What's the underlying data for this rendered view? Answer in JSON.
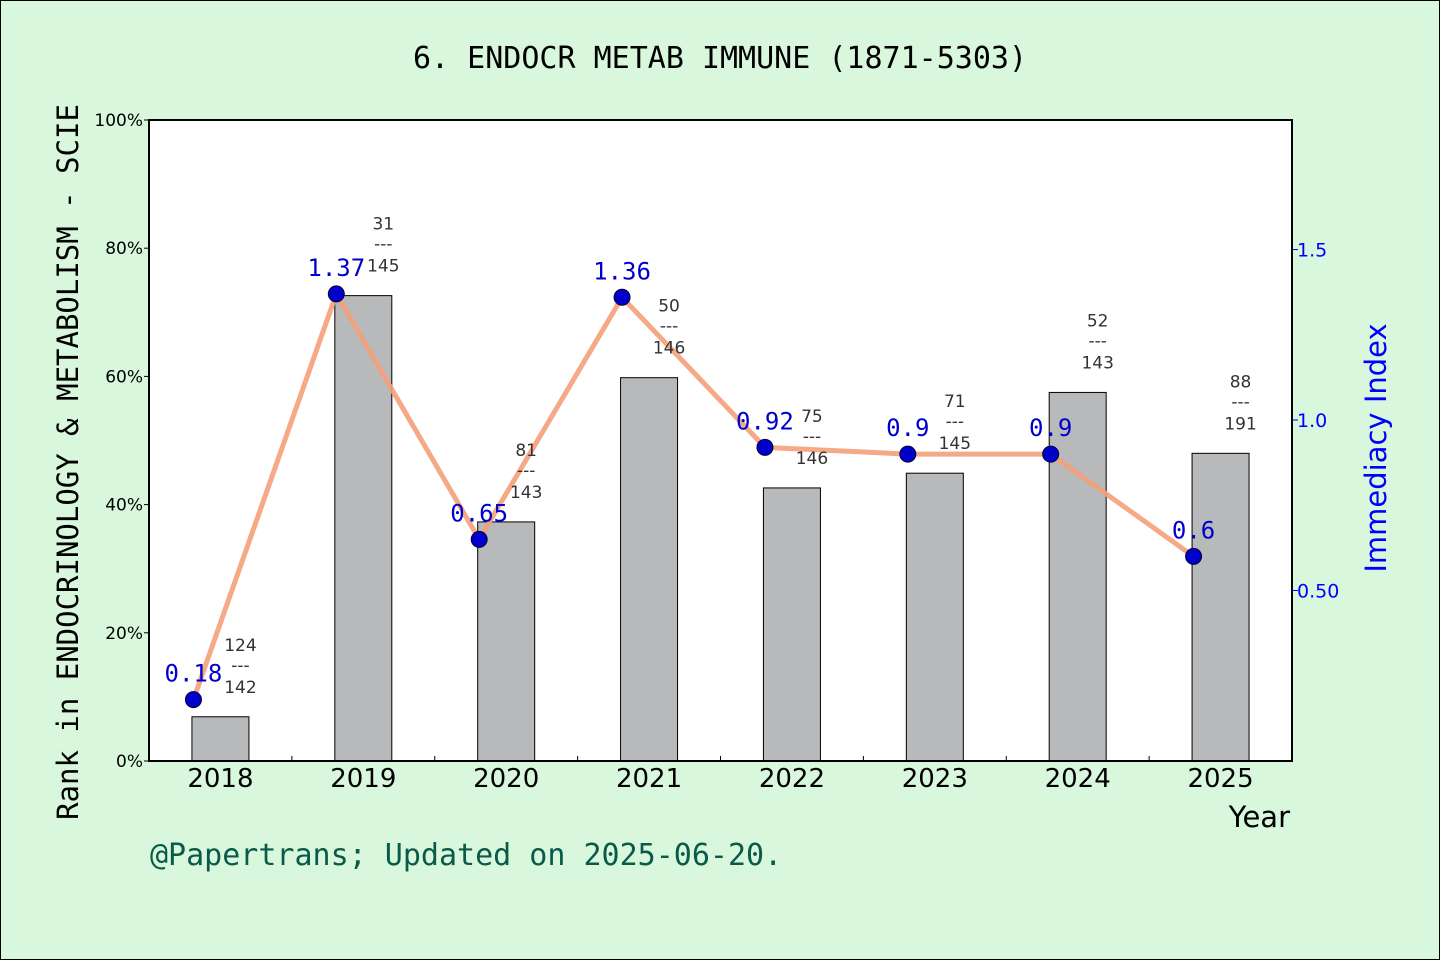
{
  "chart_data": {
    "type": "bar",
    "title": "6. ENDOCR METAB IMMUNE (1871-5303)",
    "xlabel": "Year",
    "ylabel_left": "Rank in ENDOCRINOLOGY & METABOLISM - SCIE",
    "ylabel_right": "Immediacy Index",
    "footnote": "@Papertrans; Updated on 2025-06-20.",
    "categories": [
      "2018",
      "2019",
      "2020",
      "2021",
      "2022",
      "2023",
      "2024",
      "2025"
    ],
    "left_axis": {
      "ylim": [
        0,
        100
      ],
      "ticks": [
        0,
        20,
        40,
        60,
        80,
        100
      ],
      "tick_labels": [
        "0%",
        "20%",
        "40%",
        "60%",
        "80%",
        "100%"
      ]
    },
    "right_axis": {
      "ylim": [
        0,
        1.88
      ],
      "ticks": [
        0.5,
        1.0,
        1.5
      ],
      "tick_labels": [
        "0.50",
        "1.0",
        "1.5"
      ]
    },
    "series": [
      {
        "kind": "bar",
        "color": "#b8b9ba",
        "values": [
          6.9,
          72.6,
          37.3,
          59.8,
          42.6,
          44.9,
          57.5,
          48.0
        ],
        "rank_numerators": [
          "124",
          "31",
          "81",
          "50",
          "75",
          "71",
          "52",
          "88"
        ],
        "rank_denominators": [
          "142",
          "145",
          "143",
          "146",
          "146",
          "145",
          "143",
          "191"
        ],
        "fraction_bar": "---"
      },
      {
        "kind": "line",
        "axis": "right",
        "color": "#f4a07a",
        "marker_color": "#0000cc",
        "values": [
          0.18,
          1.37,
          0.65,
          1.36,
          0.92,
          0.9,
          0.9,
          0.6
        ],
        "labels": [
          "0.18",
          "1.37",
          "0.65",
          "1.36",
          "0.92",
          "0.9",
          "0.9",
          "0.6"
        ]
      }
    ],
    "grid": false
  }
}
